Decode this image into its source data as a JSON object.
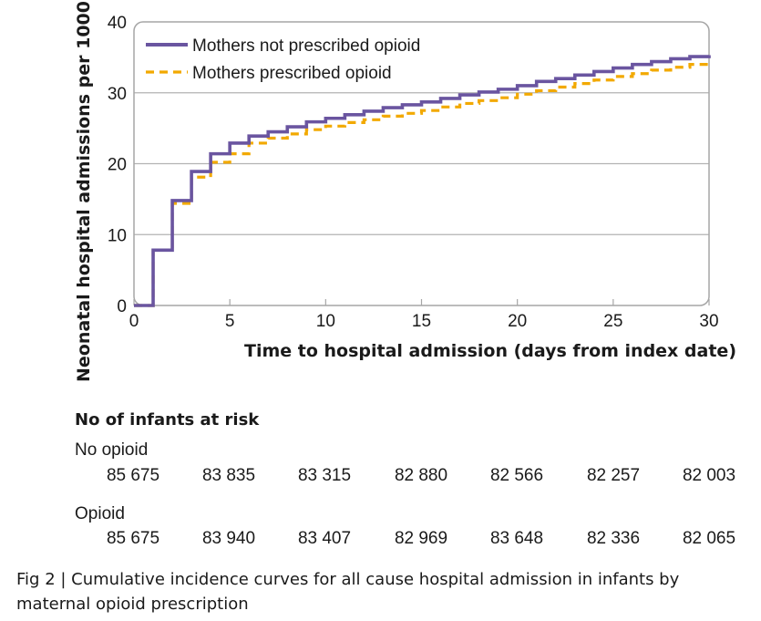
{
  "colors": {
    "not_prescribed": "#6a55a0",
    "prescribed": "#f2a900",
    "grid": "#b3b3b3",
    "frame": "#a6a6a6"
  },
  "chart_data": {
    "type": "line",
    "subtype": "step",
    "title": "",
    "xlabel": "Time to hospital admission (days from index date)",
    "ylabel": "Neonatal hospital admissions per 1000",
    "xlim": [
      0,
      30
    ],
    "ylim": [
      0,
      40
    ],
    "xticks": [
      0,
      5,
      10,
      15,
      20,
      25,
      30
    ],
    "yticks": [
      0,
      10,
      20,
      30,
      40
    ],
    "grid": "horizontal",
    "legend_position": "top-left",
    "series": [
      {
        "name": "Mothers not prescribed opioid",
        "style": "solid",
        "x": [
          0,
          1,
          2,
          3,
          4,
          5,
          6,
          7,
          8,
          9,
          10,
          11,
          12,
          13,
          14,
          15,
          16,
          17,
          18,
          19,
          20,
          21,
          22,
          23,
          24,
          25,
          26,
          27,
          28,
          29,
          30
        ],
        "y": [
          0,
          7.8,
          14.8,
          18.9,
          21.4,
          22.9,
          23.9,
          24.5,
          25.2,
          25.9,
          26.4,
          26.9,
          27.4,
          27.9,
          28.3,
          28.7,
          29.2,
          29.7,
          30.1,
          30.5,
          31.0,
          31.6,
          32.0,
          32.5,
          33.0,
          33.5,
          34.0,
          34.4,
          34.8,
          35.1,
          35.3
        ]
      },
      {
        "name": "Mothers prescribed opioid",
        "style": "dashed",
        "x": [
          0,
          1,
          2,
          3,
          4,
          5,
          6,
          7,
          8,
          9,
          10,
          11,
          12,
          13,
          14,
          15,
          16,
          17,
          18,
          19,
          20,
          21,
          22,
          23,
          24,
          25,
          26,
          27,
          28,
          29,
          30
        ],
        "y": [
          0,
          7.8,
          14.4,
          18.1,
          20.2,
          21.4,
          22.9,
          23.6,
          24.2,
          24.8,
          25.3,
          25.8,
          26.2,
          26.7,
          27.1,
          27.5,
          28.0,
          28.5,
          28.9,
          29.3,
          29.8,
          30.3,
          30.8,
          31.3,
          31.8,
          32.3,
          32.7,
          33.2,
          33.6,
          34.0,
          34.4
        ]
      }
    ]
  },
  "risk_table": {
    "heading": "No of infants at risk",
    "groups": [
      {
        "label": "No opioid",
        "values": [
          "85 675",
          "83 835",
          "83 315",
          "82 880",
          "82 566",
          "82 257",
          "82 003"
        ]
      },
      {
        "label": "Opioid",
        "values": [
          "85 675",
          "83 940",
          "83 407",
          "82 969",
          "83 648",
          "82 336",
          "82 065"
        ]
      }
    ]
  },
  "caption": "Fig 2 | Cumulative incidence curves for all cause hospital admission in infants by maternal opioid prescription"
}
